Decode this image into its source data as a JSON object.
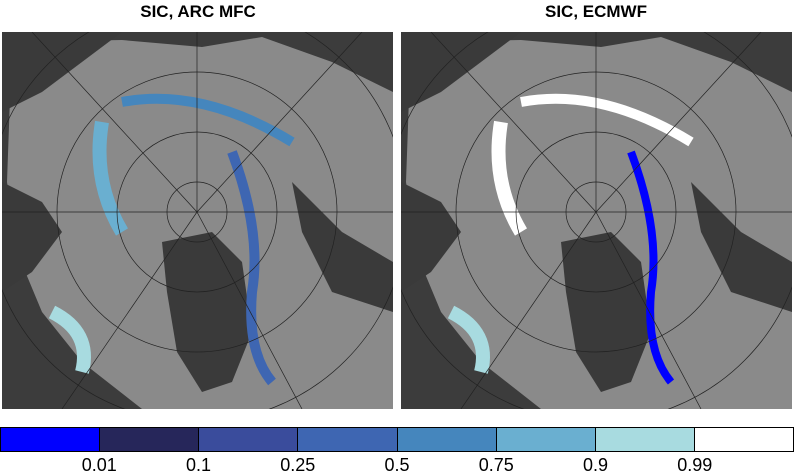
{
  "panels": [
    {
      "title": "SIC, ARC MFC"
    },
    {
      "title": "SIC, ECMWF"
    }
  ],
  "colorbar": {
    "colors": [
      "#0000ff",
      "#26265a",
      "#3a4c9c",
      "#3e66b2",
      "#4586bd",
      "#6aafd0",
      "#a8dbe0",
      "#ffffff"
    ],
    "labels": [
      "0.01",
      "0.1",
      "0.25",
      "0.5",
      "0.75",
      "0.9",
      "0.99"
    ]
  },
  "map_colors": {
    "ocean": "#3c3c3c",
    "ice": "#8c8c8c",
    "land": "#3a3a3a"
  }
}
